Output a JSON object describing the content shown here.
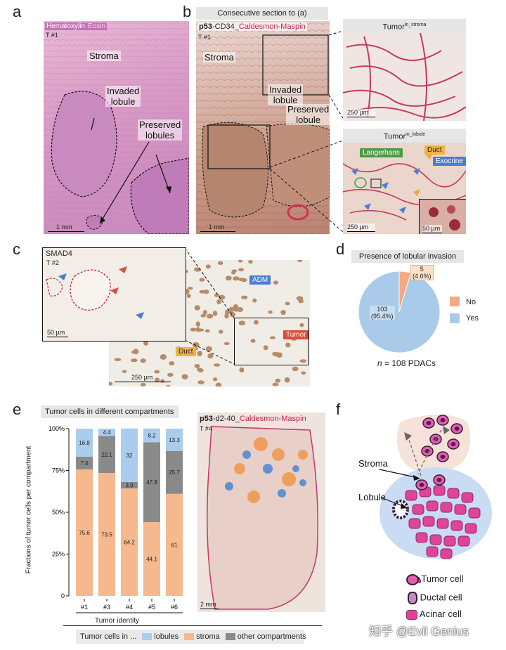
{
  "panels": {
    "a": {
      "letter": "a",
      "stain_h": "Hematoxylin",
      "stain_e": "Eosin",
      "id": "T #1",
      "stroma": "Stroma",
      "invaded": "Invaded\nlobule",
      "preserved": "Preserved\nlobules",
      "scale": "1 mm"
    },
    "b": {
      "letter": "b",
      "header": "Consecutive section to (a)",
      "stain_p53": "p53",
      "stain_cd34": "-CD34_",
      "stain_cald": "Caldesmon-Maspin",
      "id": "T #1",
      "stroma": "Stroma",
      "invaded": "Invaded\nlobule",
      "preserved": "Preserved\nlobule",
      "scale": "1 mm",
      "inset_top_title": "Tumor",
      "inset_top_sup": "in_stroma",
      "inset_top_scale": "250 µm",
      "inset_bot_title": "Tumor",
      "inset_bot_sup": "in_lobule",
      "inset_bot_scale": "250 µm",
      "inset_zoom_scale": "50 µm",
      "tag_langerhans": "Langerhans",
      "tag_duct": "Duct",
      "tag_exocrine": "Exocrine"
    },
    "c": {
      "letter": "c",
      "stain": "SMAD4",
      "id": "T #2",
      "tag_adm": "ADM",
      "tag_tumor": "Tumor",
      "tag_duct": "Duct",
      "scale_inset": "50 µm",
      "scale_main": "250 µm"
    },
    "d": {
      "letter": "d",
      "header": "Presence of lobular invasion",
      "legend_no": "No",
      "legend_yes": "Yes",
      "slice_no_label": "5\n(4.6%)",
      "slice_yes_label": "103\n(95.4%)",
      "n_italic": "n",
      "n_text": " = 108 PDACs"
    },
    "e": {
      "letter": "e",
      "header": "Tumor cells in different compartments",
      "ylabel": "Fractions of tumor cells per compartment",
      "xlabel": "Tumor identity",
      "legend_prefix": "Tumor cells in ...",
      "legend_lobules": "lobules",
      "legend_stroma": "stroma",
      "legend_other": "other compartments",
      "image_p53": "p53",
      "image_d2": "-d2-40_",
      "image_cald": "Caldesmon-Maspin",
      "image_id": "T #4",
      "image_scale": "2 mm"
    },
    "f": {
      "letter": "f",
      "stroma": "Stroma",
      "lobule": "Lobule",
      "legend_tumor": "Tumor cell",
      "legend_ductal": "Ductal cell",
      "legend_acinar": "Acinar cell"
    }
  },
  "watermark": "知乎 @Evil Genius",
  "colors": {
    "stroma": "#f6b98e",
    "lobules": "#aacdee",
    "other": "#8a8a8a",
    "pie_yes": "#a9cbe9",
    "pie_no": "#f4a983"
  },
  "chart_data": [
    {
      "type": "bar",
      "stacked": true,
      "categories": [
        "#1",
        "#3",
        "#4",
        "#5",
        "#6"
      ],
      "series": [
        {
          "name": "stroma",
          "values": [
            75.6,
            73.5,
            64.2,
            44.1,
            61
          ]
        },
        {
          "name": "other compartments",
          "values": [
            7.6,
            22.1,
            3.9,
            47.8,
            25.7
          ]
        },
        {
          "name": "lobules",
          "values": [
            16.8,
            4.4,
            32,
            8.2,
            13.3
          ]
        }
      ],
      "yticks": [
        "0",
        "25%",
        "50%",
        "75%",
        "100%"
      ],
      "ylim": [
        0,
        100
      ],
      "ylabel": "Fractions of tumor cells per compartment",
      "xlabel": "Tumor identity",
      "title": "Tumor cells in different compartments"
    },
    {
      "type": "pie",
      "title": "Presence of lobular invasion",
      "labels": [
        "No",
        "Yes"
      ],
      "values": [
        5,
        103
      ],
      "percent": [
        4.6,
        95.4
      ]
    }
  ]
}
